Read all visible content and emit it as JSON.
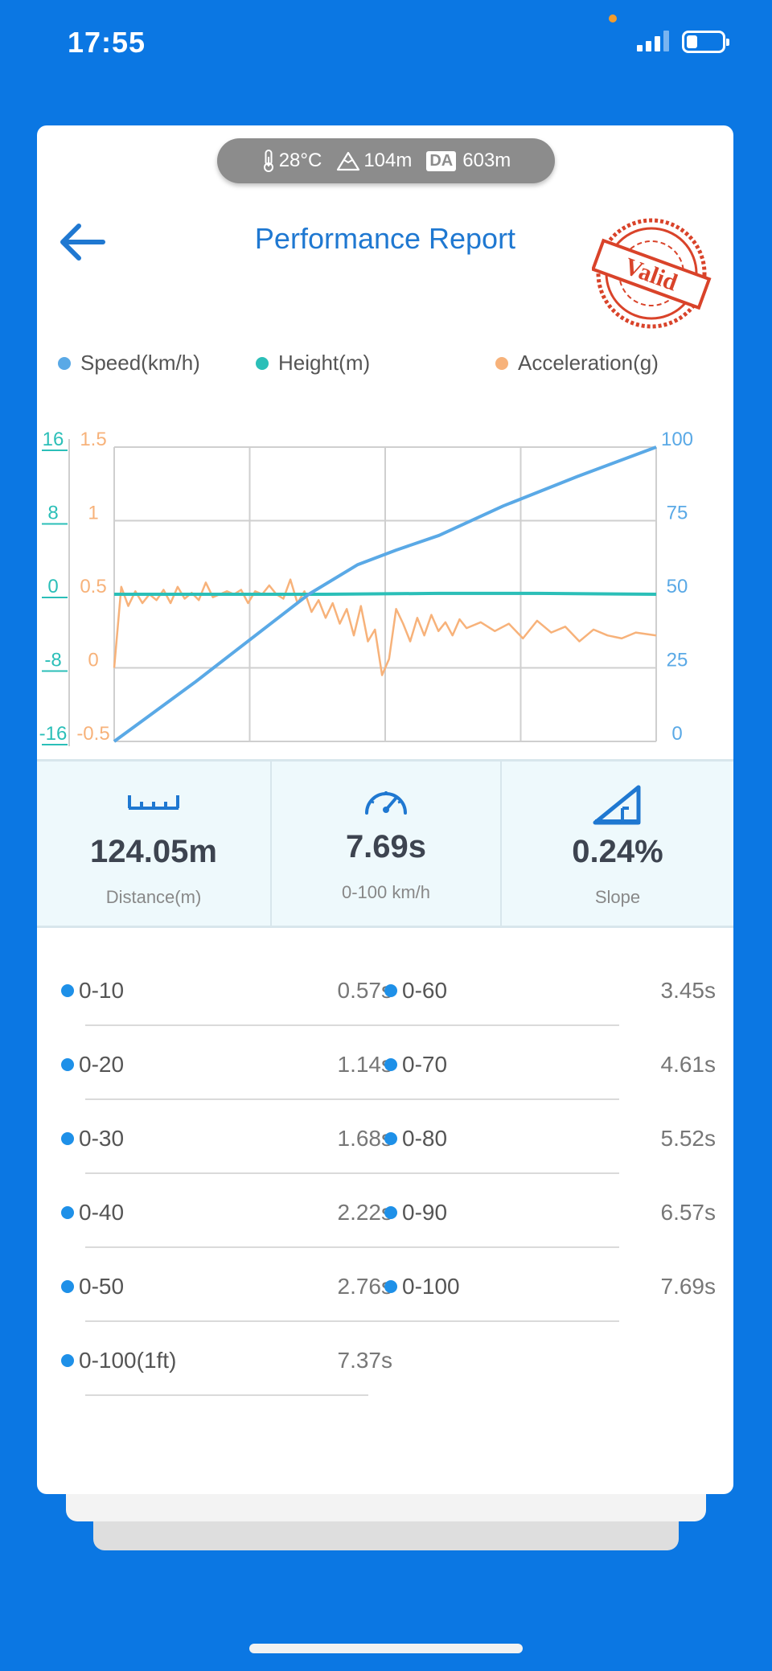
{
  "status_bar": {
    "time": "17:55"
  },
  "conditions": {
    "temperature": "28°C",
    "altitude": "104m",
    "da_badge": "DA",
    "density_altitude": "603m"
  },
  "header": {
    "title": "Performance Report",
    "stamp_text": "Valid"
  },
  "legend": [
    {
      "label": "Speed(km/h)",
      "color": "#5aa9e6"
    },
    {
      "label": "Height(m)",
      "color": "#2bbfb8"
    },
    {
      "label": "Acceleration(g)",
      "color": "#f7b27a"
    }
  ],
  "chart_data": {
    "type": "line",
    "axes": {
      "height_ticks": [
        "16",
        "8",
        "0",
        "-8",
        "-16"
      ],
      "accel_ticks": [
        "1.5",
        "1",
        "0.5",
        "0",
        "-0.5"
      ],
      "speed_ticks": [
        "100",
        "75",
        "50",
        "25",
        "0"
      ],
      "height_range": [
        -16,
        16
      ],
      "accel_range": [
        -0.5,
        1.5
      ],
      "speed_range": [
        0,
        100
      ],
      "time_range": [
        0,
        7.69
      ],
      "grid": true
    },
    "series": [
      {
        "name": "Speed(km/h)",
        "color": "#5aa9e6",
        "t": [
          0,
          0.57,
          1.14,
          1.68,
          2.22,
          2.76,
          3.45,
          4.0,
          4.61,
          5.52,
          6.57,
          7.69
        ],
        "values": [
          0,
          10,
          20,
          30,
          40,
          50,
          60,
          65,
          70,
          80,
          90,
          100
        ]
      },
      {
        "name": "Height(m)",
        "color": "#2bbfb8",
        "t": [
          0,
          3.0,
          4.6,
          6.0,
          7.69
        ],
        "values": [
          0,
          0,
          0.1,
          0.1,
          0
        ]
      },
      {
        "name": "Acceleration(g)",
        "color": "#f7b27a",
        "t": [
          0,
          0.1,
          0.2,
          0.3,
          0.4,
          0.5,
          0.6,
          0.7,
          0.8,
          0.9,
          1.0,
          1.1,
          1.2,
          1.3,
          1.4,
          1.5,
          1.6,
          1.7,
          1.8,
          1.9,
          2.0,
          2.1,
          2.2,
          2.3,
          2.4,
          2.5,
          2.6,
          2.7,
          2.8,
          2.9,
          3.0,
          3.1,
          3.2,
          3.3,
          3.4,
          3.5,
          3.6,
          3.7,
          3.8,
          3.9,
          4.0,
          4.1,
          4.2,
          4.3,
          4.4,
          4.5,
          4.6,
          4.7,
          4.8,
          4.9,
          5.0,
          5.2,
          5.4,
          5.6,
          5.8,
          6.0,
          6.2,
          6.4,
          6.6,
          6.8,
          7.0,
          7.2,
          7.4,
          7.69
        ],
        "values": [
          0.0,
          0.55,
          0.42,
          0.52,
          0.44,
          0.5,
          0.46,
          0.53,
          0.44,
          0.55,
          0.47,
          0.51,
          0.46,
          0.58,
          0.48,
          0.5,
          0.52,
          0.5,
          0.53,
          0.44,
          0.52,
          0.5,
          0.56,
          0.5,
          0.47,
          0.6,
          0.44,
          0.52,
          0.38,
          0.46,
          0.34,
          0.44,
          0.3,
          0.4,
          0.22,
          0.42,
          0.18,
          0.26,
          -0.05,
          0.06,
          0.4,
          0.3,
          0.18,
          0.34,
          0.22,
          0.36,
          0.25,
          0.31,
          0.22,
          0.33,
          0.27,
          0.31,
          0.25,
          0.3,
          0.2,
          0.32,
          0.24,
          0.28,
          0.18,
          0.26,
          0.22,
          0.2,
          0.24,
          0.22
        ]
      }
    ]
  },
  "metrics": [
    {
      "value": "124.05m",
      "label": "Distance(m)",
      "icon": "ruler-icon"
    },
    {
      "value": "7.69s",
      "label": "0-100 km/h",
      "icon": "speedometer-icon"
    },
    {
      "value": "0.24%",
      "label": "Slope",
      "icon": "slope-icon"
    }
  ],
  "splits": [
    {
      "label": "0-10",
      "value": "0.57s"
    },
    {
      "label": "0-60",
      "value": "3.45s"
    },
    {
      "label": "0-20",
      "value": "1.14s"
    },
    {
      "label": "0-70",
      "value": "4.61s"
    },
    {
      "label": "0-30",
      "value": "1.68s"
    },
    {
      "label": "0-80",
      "value": "5.52s"
    },
    {
      "label": "0-40",
      "value": "2.22s"
    },
    {
      "label": "0-90",
      "value": "6.57s"
    },
    {
      "label": "0-50",
      "value": "2.76s"
    },
    {
      "label": "0-100",
      "value": "7.69s"
    },
    {
      "label": "0-100(1ft)",
      "value": "7.37s"
    }
  ]
}
